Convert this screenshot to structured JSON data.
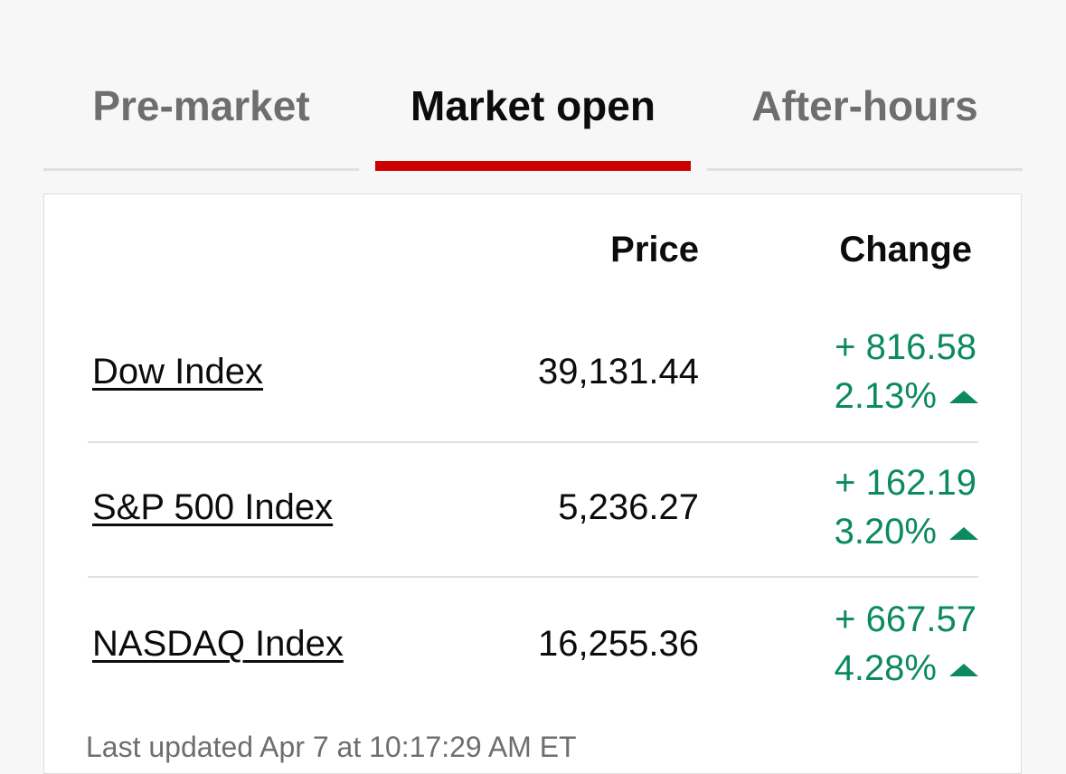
{
  "tabs": [
    "Pre-market",
    "Market open",
    "After-hours"
  ],
  "table": {
    "header": {
      "price": "Price",
      "change": "Change"
    },
    "rows": [
      {
        "name": "Dow Index",
        "price": "39,131.44",
        "change": "+ 816.58",
        "percent": "2.13%"
      },
      {
        "name": "S&P 500 Index",
        "price": "5,236.27",
        "change": "+ 162.19",
        "percent": "3.20%"
      },
      {
        "name": "NASDAQ Index",
        "price": "16,255.36",
        "change": "+ 667.57",
        "percent": "4.28%"
      }
    ]
  },
  "footer": "Last updated Apr 7 at 10:17:29 AM ET"
}
